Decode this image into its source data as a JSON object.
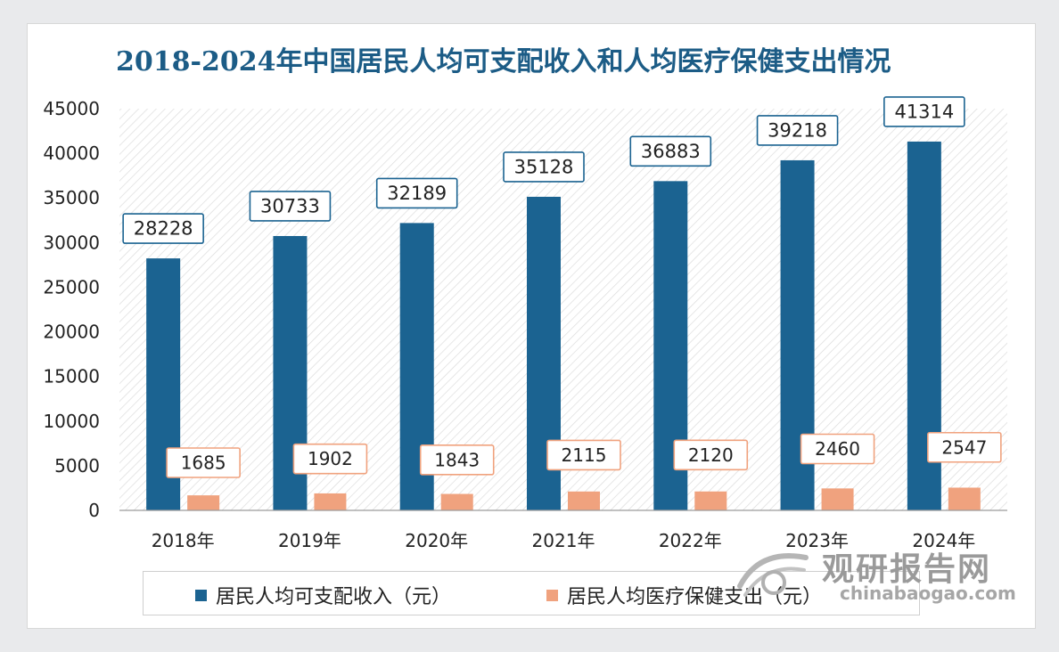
{
  "chart_data": {
    "type": "bar",
    "title": "2018-2024年中国居民人均可支配收入和人均医疗保健支出情况",
    "categories": [
      "2018年",
      "2019年",
      "2020年",
      "2021年",
      "2022年",
      "2023年",
      "2024年"
    ],
    "series": [
      {
        "name": "居民人均可支配收入（元）",
        "color": "#1b6391",
        "values": [
          28228,
          30733,
          32189,
          35128,
          36883,
          39218,
          41314
        ]
      },
      {
        "name": "居民人均医疗保健支出（元）",
        "color": "#f0a27e",
        "values": [
          1685,
          1902,
          1843,
          2115,
          2120,
          2460,
          2547
        ]
      }
    ],
    "yticks": [
      0,
      5000,
      10000,
      15000,
      20000,
      25000,
      30000,
      35000,
      40000,
      45000
    ],
    "ylim": [
      0,
      45000
    ],
    "xlabel": "",
    "ylabel": "",
    "legend": "bottom"
  },
  "watermark": {
    "name": "观研报告网",
    "url": "chinabaogao.com"
  }
}
